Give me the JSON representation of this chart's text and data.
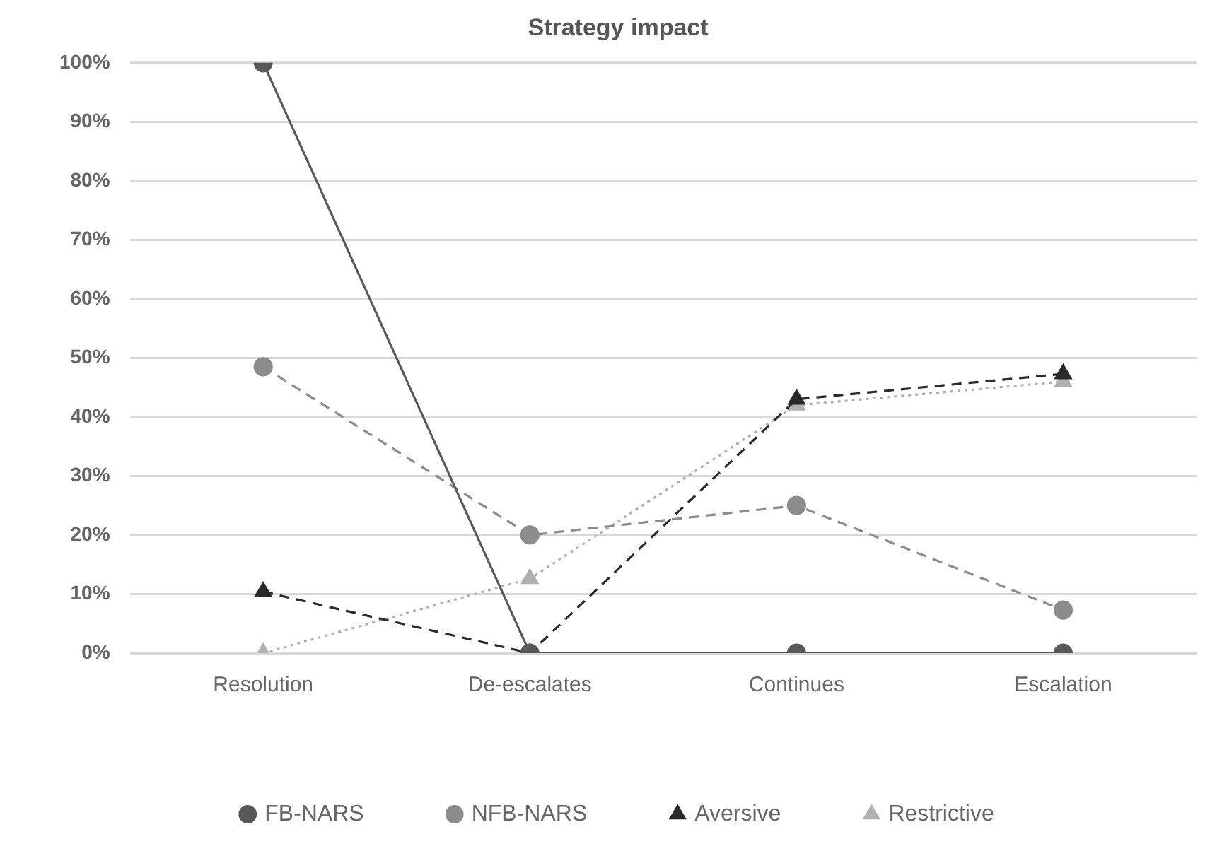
{
  "chart_data": {
    "type": "line",
    "title": "Strategy impact",
    "categories": [
      "Resolution",
      "De-escalates",
      "Continues",
      "Escalation"
    ],
    "series": [
      {
        "name": "FB-NARS",
        "color": "#59595b",
        "values": [
          100,
          0,
          0,
          0
        ],
        "marker": "circle",
        "line_style": "solid"
      },
      {
        "name": "NFB-NARS",
        "color": "#8c8c8c",
        "values": [
          48.5,
          20,
          25,
          7.3
        ],
        "marker": "circle",
        "line_style": "dashed"
      },
      {
        "name": "Aversive",
        "color": "#2b2b2f",
        "values": [
          10.4,
          0,
          43,
          47.3
        ],
        "marker": "triangle",
        "line_style": "dashed"
      },
      {
        "name": "Restrictive",
        "color": "#b0b0b0",
        "values": [
          0,
          12.6,
          42,
          46
        ],
        "marker": "triangle",
        "line_style": "dotted"
      }
    ],
    "ylim": [
      0,
      100
    ],
    "yticks": [
      {
        "value": 0,
        "label": "0%"
      },
      {
        "value": 10,
        "label": "10%"
      },
      {
        "value": 20,
        "label": "20%"
      },
      {
        "value": 30,
        "label": "30%"
      },
      {
        "value": 40,
        "label": "40%"
      },
      {
        "value": 50,
        "label": "50%"
      },
      {
        "value": 60,
        "label": "60%"
      },
      {
        "value": 70,
        "label": "70%"
      },
      {
        "value": 80,
        "label": "80%"
      },
      {
        "value": 90,
        "label": "90%"
      },
      {
        "value": 100,
        "label": "100%"
      }
    ],
    "grid": "y",
    "legend": "bottom"
  }
}
